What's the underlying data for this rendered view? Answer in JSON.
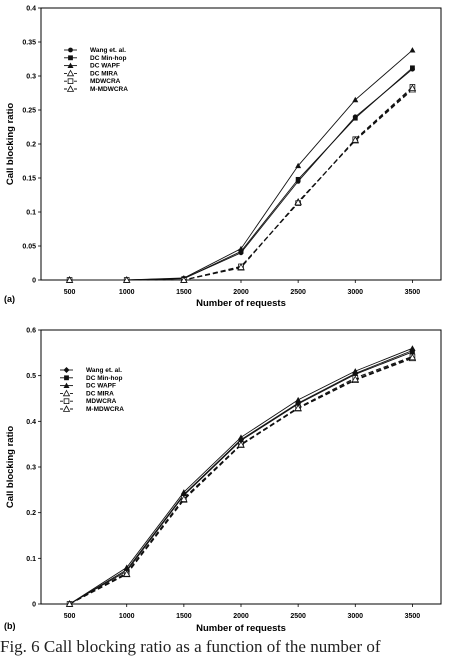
{
  "chart_data": [
    {
      "type": "line",
      "panel_label": "(a)",
      "xlabel": "Number of requests",
      "ylabel": "Call blocking ratio",
      "x": [
        500,
        1000,
        1500,
        2000,
        2500,
        3000,
        3500
      ],
      "ylim": [
        0,
        0.4
      ],
      "yticks": [
        "0",
        "0.05",
        "0.1",
        "0.15",
        "0.2",
        "0.25",
        "0.3",
        "0.35",
        "0.4"
      ],
      "xticks": [
        "500",
        "1000",
        "1500",
        "2000",
        "2500",
        "3000",
        "3500"
      ],
      "grid": false,
      "legend_position": "top-left",
      "series": [
        {
          "name": "Wang et. al.",
          "marker": "circle",
          "dash": "solid",
          "values": [
            0,
            0,
            0.002,
            0.04,
            0.145,
            0.24,
            0.31
          ]
        },
        {
          "name": "DC Min-hop",
          "marker": "square",
          "dash": "solid",
          "values": [
            0,
            0,
            0.002,
            0.042,
            0.148,
            0.238,
            0.312
          ]
        },
        {
          "name": "DC WAPF",
          "marker": "triangle",
          "dash": "solid",
          "values": [
            0,
            0,
            0.003,
            0.046,
            0.168,
            0.265,
            0.338
          ]
        },
        {
          "name": "DC MIRA",
          "marker": "triangle-open",
          "dash": "dashed",
          "values": [
            0,
            0,
            0,
            0.018,
            0.115,
            0.205,
            0.28
          ]
        },
        {
          "name": "MDWCRA",
          "marker": "square-open",
          "dash": "dashed",
          "values": [
            0,
            0,
            0,
            0.02,
            0.113,
            0.207,
            0.284
          ]
        },
        {
          "name": "M-MDWCRA",
          "marker": "triangle-open",
          "dash": "dashed",
          "values": [
            0,
            0,
            0,
            0.019,
            0.114,
            0.206,
            0.282
          ]
        }
      ]
    },
    {
      "type": "line",
      "panel_label": "(b)",
      "xlabel": "Number of requests",
      "ylabel": "Call blocking ratio",
      "x": [
        500,
        1000,
        1500,
        2000,
        2500,
        3000,
        3500
      ],
      "ylim": [
        0,
        0.6
      ],
      "yticks": [
        "0",
        "0.1",
        "0.2",
        "0.3",
        "0.4",
        "0.5",
        "0.6"
      ],
      "xticks": [
        "500",
        "1000",
        "1500",
        "2000",
        "2500",
        "3000",
        "3500"
      ],
      "grid": false,
      "legend_position": "top-left",
      "series": [
        {
          "name": "Wang et. al.",
          "marker": "diamond",
          "dash": "solid",
          "values": [
            0,
            0.075,
            0.24,
            0.36,
            0.44,
            0.505,
            0.555
          ]
        },
        {
          "name": "DC Min-hop",
          "marker": "square",
          "dash": "solid",
          "values": [
            0,
            0.072,
            0.238,
            0.358,
            0.438,
            0.503,
            0.552
          ]
        },
        {
          "name": "DC WAPF",
          "marker": "triangle",
          "dash": "solid",
          "values": [
            0,
            0.08,
            0.245,
            0.365,
            0.447,
            0.51,
            0.56
          ]
        },
        {
          "name": "DC MIRA",
          "marker": "triangle-open",
          "dash": "dashed",
          "values": [
            0,
            0.065,
            0.228,
            0.348,
            0.428,
            0.49,
            0.538
          ]
        },
        {
          "name": "MDWCRA",
          "marker": "square-open",
          "dash": "dashed",
          "values": [
            0,
            0.068,
            0.232,
            0.35,
            0.43,
            0.495,
            0.542
          ]
        },
        {
          "name": "M-MDWCRA",
          "marker": "triangle-open",
          "dash": "dashed",
          "values": [
            0,
            0.066,
            0.23,
            0.349,
            0.429,
            0.492,
            0.54
          ]
        }
      ]
    }
  ],
  "caption": "Fig. 6  Call blocking ratio as a function of the number of"
}
